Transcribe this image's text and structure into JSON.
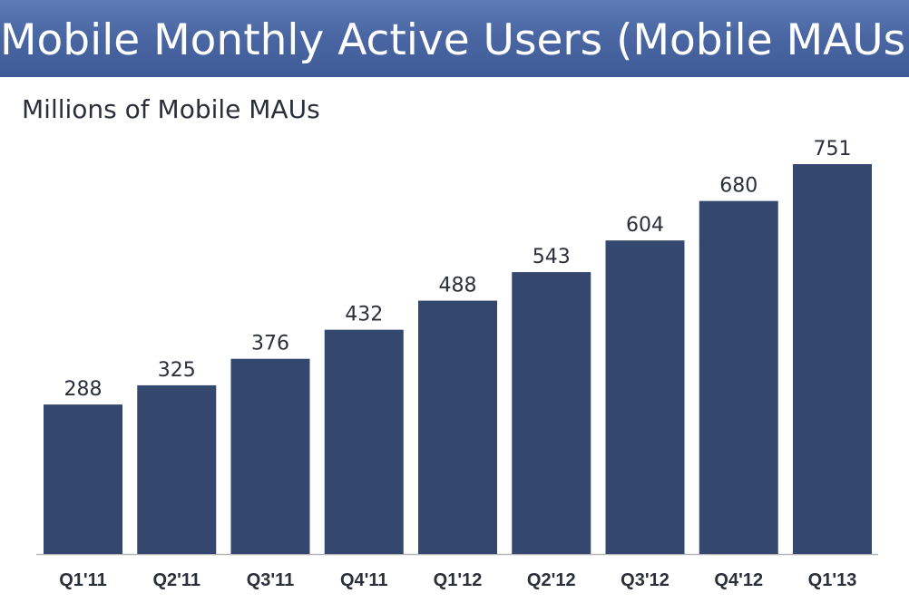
{
  "slide": {
    "title": "Mobile Monthly Active Users (Mobile MAUs)",
    "subtitle": "Millions of Mobile MAUs"
  },
  "colors": {
    "banner": "#4a67a4",
    "bar": "#34486f",
    "text": "#2b2f3a"
  },
  "chart_data": {
    "type": "bar",
    "categories": [
      "Q1'11",
      "Q2'11",
      "Q3'11",
      "Q4'11",
      "Q1'12",
      "Q2'12",
      "Q3'12",
      "Q4'12",
      "Q1'13"
    ],
    "values": [
      288,
      325,
      376,
      432,
      488,
      543,
      604,
      680,
      751
    ],
    "title": "Mobile Monthly Active Users (Mobile MAUs)",
    "ylabel": "Millions of Mobile MAUs",
    "xlabel": "",
    "ylim": [
      0,
      751
    ],
    "grid": false,
    "data_labels": true
  }
}
